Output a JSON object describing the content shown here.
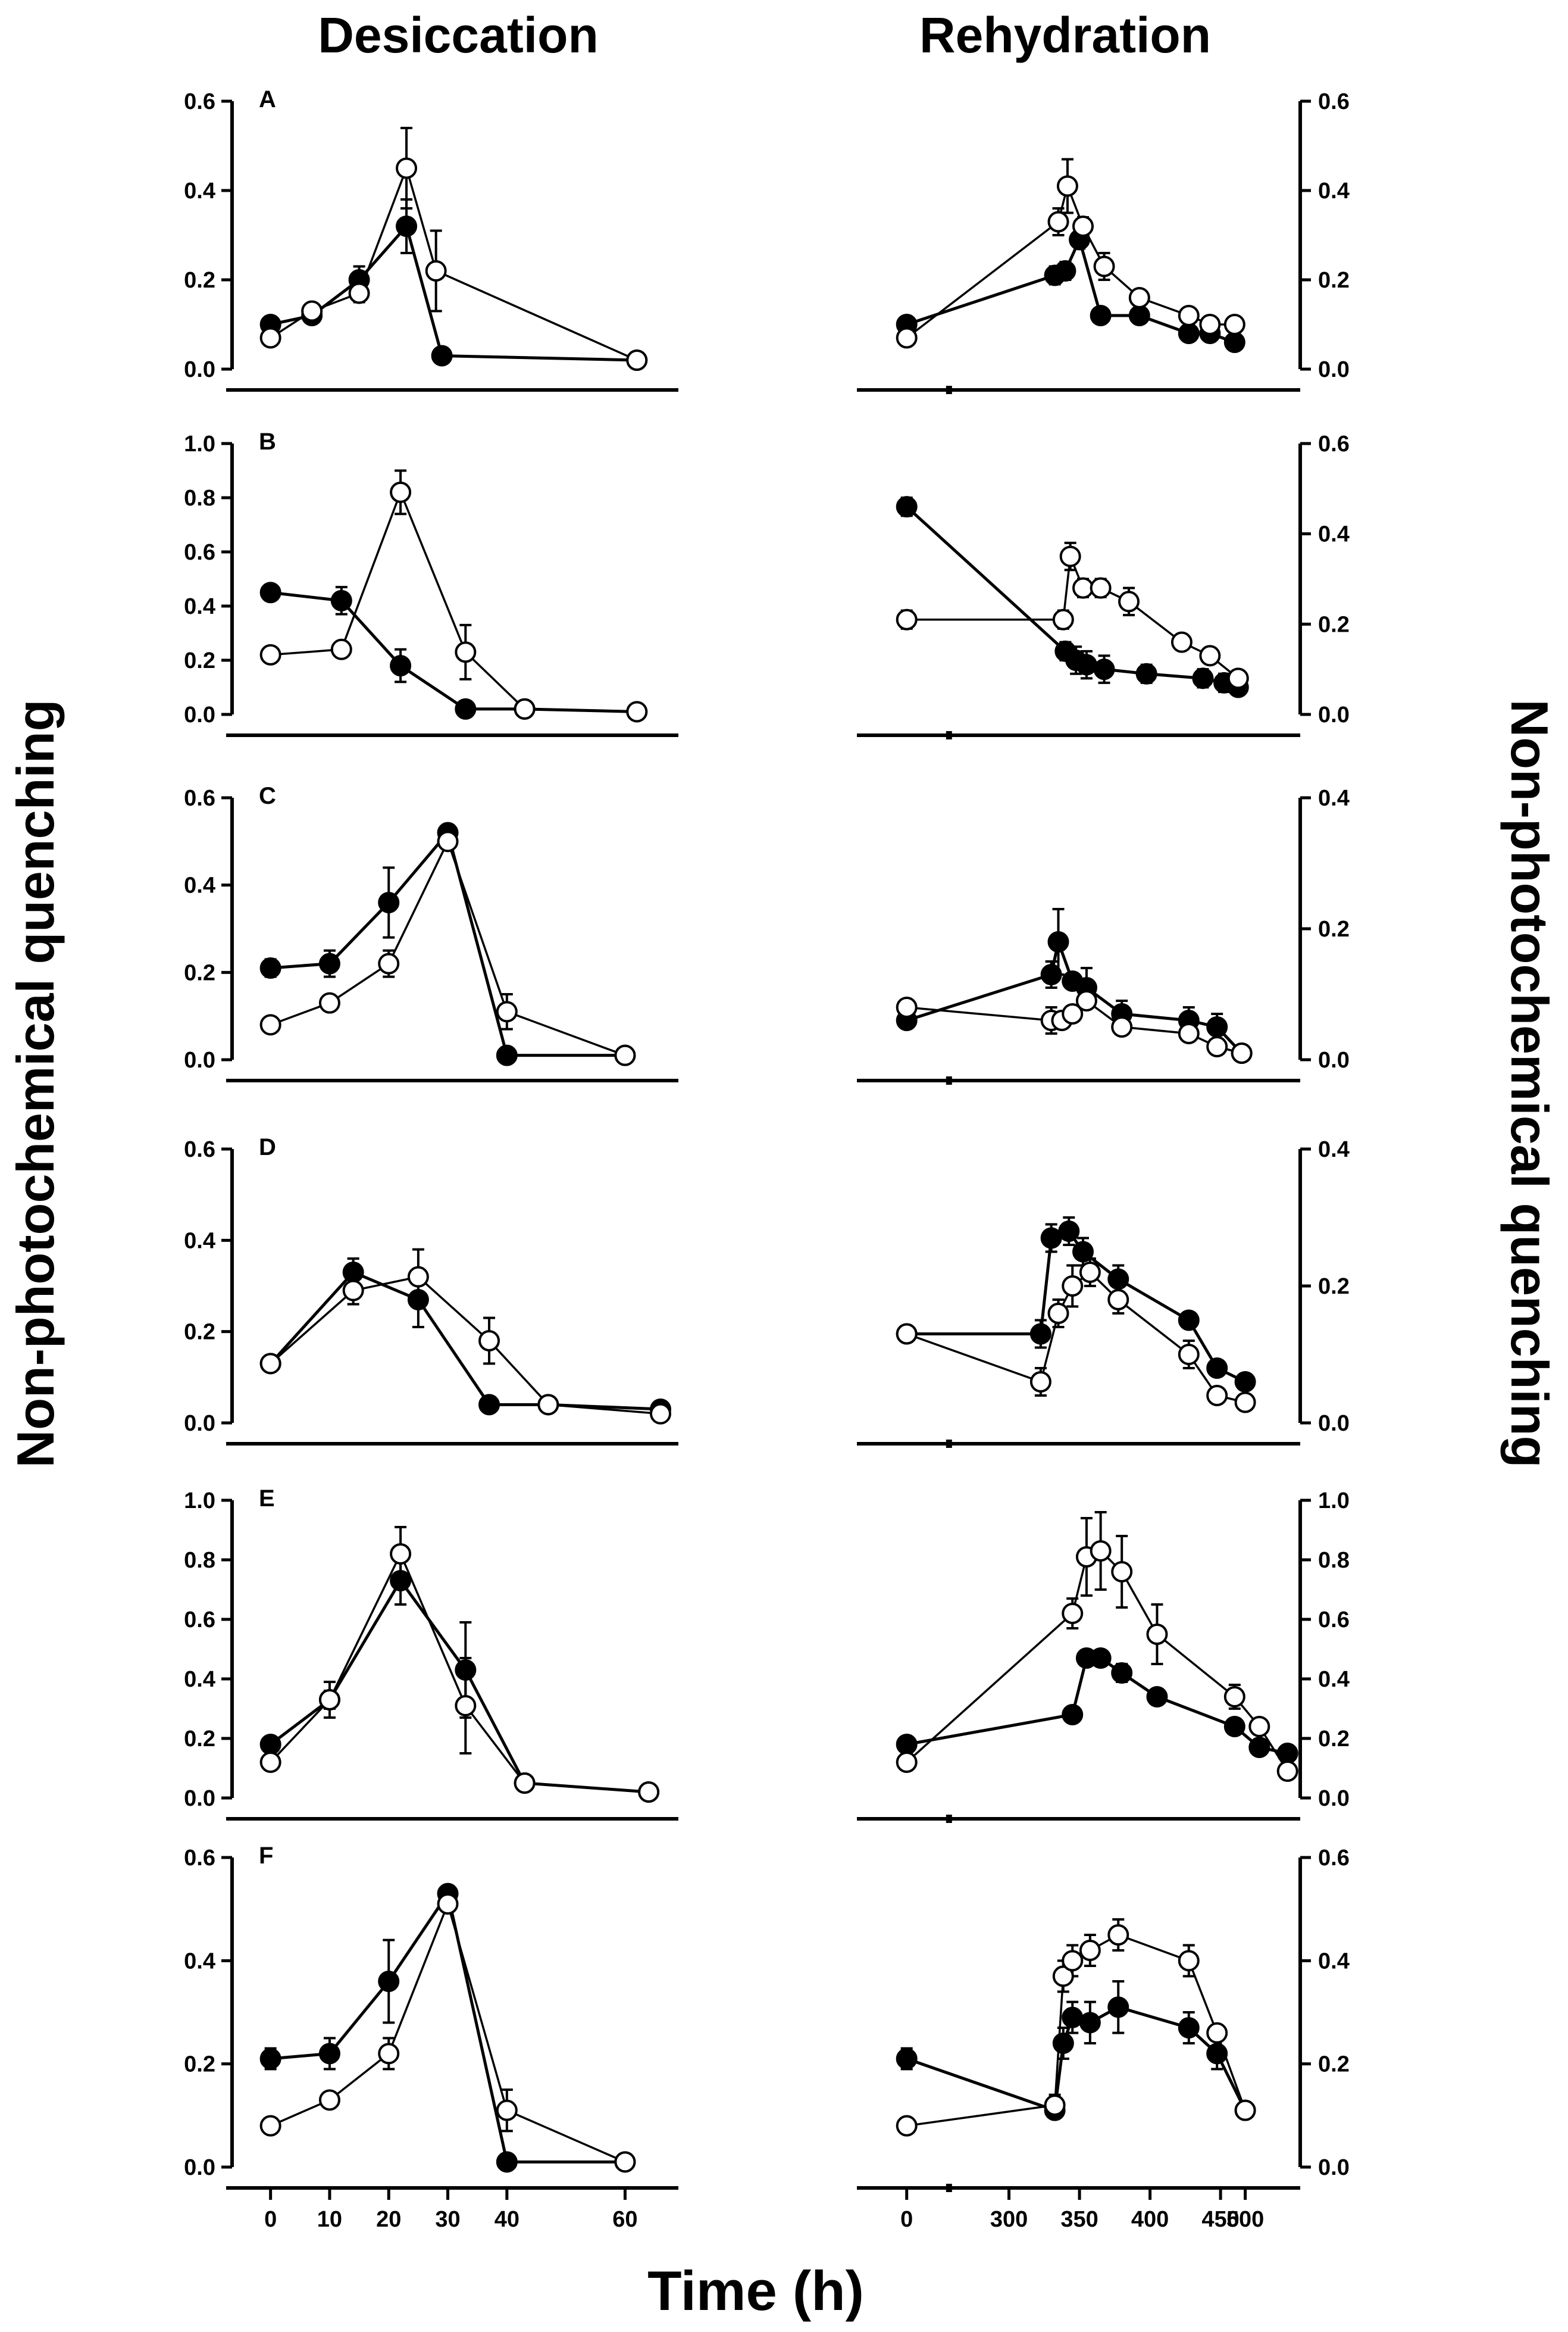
{
  "figure": {
    "left_title": "Desiccation",
    "right_title": "Rehydration",
    "y_label": "Non-photochemical quenching",
    "x_label": "Time (h)"
  },
  "chart_data": [
    {
      "panel": "A",
      "side": "desiccation",
      "type": "scatter",
      "ylim": [
        0,
        0.6
      ],
      "yticks": [
        0.0,
        0.2,
        0.4,
        0.6
      ],
      "xlim": [
        -5,
        66
      ],
      "xticks": [
        0,
        10,
        20,
        30,
        40,
        60
      ],
      "series": [
        {
          "name": "filled",
          "x": [
            0,
            7,
            15,
            23,
            29,
            62
          ],
          "y": [
            0.1,
            0.12,
            0.2,
            0.32,
            0.03,
            0.02
          ],
          "err": [
            0,
            0,
            0.03,
            0.06,
            0,
            0
          ]
        },
        {
          "name": "open",
          "x": [
            0,
            7,
            15,
            23,
            28,
            62
          ],
          "y": [
            0.07,
            0.13,
            0.17,
            0.45,
            0.22,
            0.02
          ],
          "err": [
            0,
            0,
            0.02,
            0.09,
            0.09,
            0
          ]
        }
      ]
    },
    {
      "panel": "A",
      "side": "rehydration",
      "type": "scatter",
      "ylim": [
        0,
        0.6
      ],
      "yticks": [
        0.0,
        0.2,
        0.4,
        0.6
      ],
      "xlim": [
        -20,
        520
      ],
      "series": [
        {
          "name": "filled",
          "x": [
            0,
            210,
            225,
            245,
            275,
            330,
            400,
            430,
            465
          ],
          "y": [
            0.1,
            0.21,
            0.22,
            0.29,
            0.12,
            0.12,
            0.08,
            0.08,
            0.06
          ],
          "err": [
            0,
            0.02,
            0.02,
            0.02,
            0,
            0,
            0,
            0,
            0
          ]
        },
        {
          "name": "open",
          "x": [
            0,
            215,
            228,
            250,
            280,
            330,
            400,
            430,
            465
          ],
          "y": [
            0.07,
            0.33,
            0.41,
            0.32,
            0.23,
            0.16,
            0.12,
            0.1,
            0.1
          ],
          "err": [
            0,
            0.03,
            0.06,
            0.02,
            0.03,
            0,
            0,
            0,
            0
          ]
        }
      ]
    },
    {
      "panel": "B",
      "side": "desiccation",
      "type": "scatter",
      "ylim": [
        0,
        1.0
      ],
      "yticks": [
        0.0,
        0.2,
        0.4,
        0.6,
        0.8,
        1.0
      ],
      "xlim": [
        -5,
        66
      ],
      "series": [
        {
          "name": "filled",
          "x": [
            0,
            12,
            22,
            33,
            43,
            62
          ],
          "y": [
            0.45,
            0.42,
            0.18,
            0.02,
            0.02,
            0.01
          ],
          "err": [
            0,
            0.05,
            0.06,
            0,
            0,
            0
          ]
        },
        {
          "name": "open",
          "x": [
            0,
            12,
            22,
            33,
            43,
            62
          ],
          "y": [
            0.22,
            0.24,
            0.82,
            0.23,
            0.02,
            0.01
          ],
          "err": [
            0,
            0,
            0.08,
            0.1,
            0,
            0
          ]
        }
      ]
    },
    {
      "panel": "B",
      "side": "rehydration",
      "type": "scatter",
      "ylim": [
        0,
        0.6
      ],
      "yticks": [
        0.0,
        0.2,
        0.4,
        0.6
      ],
      "xlim": [
        -20,
        520
      ],
      "series": [
        {
          "name": "filled",
          "x": [
            0,
            225,
            240,
            255,
            280,
            340,
            420,
            450,
            470
          ],
          "y": [
            0.46,
            0.14,
            0.12,
            0.11,
            0.1,
            0.09,
            0.08,
            0.07,
            0.06
          ],
          "err": [
            0.02,
            0.02,
            0.03,
            0.03,
            0.03,
            0.02,
            0.02,
            0.02,
            0
          ]
        },
        {
          "name": "open",
          "x": [
            0,
            222,
            232,
            250,
            275,
            315,
            390,
            430,
            470
          ],
          "y": [
            0.21,
            0.21,
            0.35,
            0.28,
            0.28,
            0.25,
            0.16,
            0.13,
            0.08
          ],
          "err": [
            0.02,
            0.02,
            0.03,
            0.02,
            0.02,
            0.03,
            0,
            0,
            0
          ]
        }
      ]
    },
    {
      "panel": "C",
      "side": "desiccation",
      "type": "scatter",
      "ylim": [
        0,
        0.6
      ],
      "yticks": [
        0.0,
        0.2,
        0.4,
        0.6
      ],
      "xlim": [
        -5,
        66
      ],
      "series": [
        {
          "name": "filled",
          "x": [
            0,
            10,
            20,
            30,
            40,
            60
          ],
          "y": [
            0.21,
            0.22,
            0.36,
            0.52,
            0.01,
            0.01
          ],
          "err": [
            0.02,
            0.03,
            0.08,
            0,
            0,
            0
          ]
        },
        {
          "name": "open",
          "x": [
            0,
            10,
            20,
            30,
            40,
            60
          ],
          "y": [
            0.08,
            0.13,
            0.22,
            0.5,
            0.11,
            0.01
          ],
          "err": [
            0,
            0,
            0.03,
            0,
            0.04,
            0
          ]
        }
      ]
    },
    {
      "panel": "C",
      "side": "rehydration",
      "type": "scatter",
      "ylim": [
        0,
        0.4
      ],
      "yticks": [
        0.0,
        0.2,
        0.4
      ],
      "xlim": [
        -20,
        520
      ],
      "series": [
        {
          "name": "filled",
          "x": [
            0,
            205,
            215,
            235,
            255,
            305,
            400,
            440,
            475
          ],
          "y": [
            0.06,
            0.13,
            0.18,
            0.12,
            0.11,
            0.07,
            0.06,
            0.05,
            0.01
          ],
          "err": [
            0,
            0.02,
            0.05,
            0,
            0.03,
            0.02,
            0.02,
            0.02,
            0
          ]
        },
        {
          "name": "open",
          "x": [
            0,
            205,
            220,
            235,
            255,
            305,
            400,
            440,
            475
          ],
          "y": [
            0.08,
            0.06,
            0.06,
            0.07,
            0.09,
            0.05,
            0.04,
            0.02,
            0.01
          ],
          "err": [
            0,
            0.02,
            0,
            0,
            0,
            0,
            0,
            0,
            0
          ]
        }
      ]
    },
    {
      "panel": "D",
      "side": "desiccation",
      "type": "scatter",
      "ylim": [
        0,
        0.6
      ],
      "yticks": [
        0.0,
        0.2,
        0.4,
        0.6
      ],
      "xlim": [
        -5,
        66
      ],
      "series": [
        {
          "name": "filled",
          "x": [
            0,
            14,
            25,
            37,
            47,
            66
          ],
          "y": [
            0.13,
            0.33,
            0.27,
            0.04,
            0.04,
            0.03
          ],
          "err": [
            0,
            0.03,
            0.06,
            0,
            0,
            0
          ]
        },
        {
          "name": "open",
          "x": [
            0,
            14,
            25,
            37,
            47,
            66
          ],
          "y": [
            0.13,
            0.29,
            0.32,
            0.18,
            0.04,
            0.02
          ],
          "err": [
            0,
            0.03,
            0.06,
            0.05,
            0,
            0
          ]
        }
      ]
    },
    {
      "panel": "D",
      "side": "rehydration",
      "type": "scatter",
      "ylim": [
        0,
        0.4
      ],
      "yticks": [
        0.0,
        0.2,
        0.4
      ],
      "xlim": [
        -20,
        520
      ],
      "series": [
        {
          "name": "filled",
          "x": [
            0,
            190,
            205,
            230,
            250,
            300,
            400,
            440,
            480
          ],
          "y": [
            0.13,
            0.13,
            0.27,
            0.28,
            0.25,
            0.21,
            0.15,
            0.08,
            0.06
          ],
          "err": [
            0.01,
            0.02,
            0.02,
            0.02,
            0.02,
            0.02,
            0.01,
            0,
            0
          ]
        },
        {
          "name": "open",
          "x": [
            0,
            190,
            215,
            235,
            260,
            300,
            400,
            440,
            480
          ],
          "y": [
            0.13,
            0.06,
            0.16,
            0.2,
            0.22,
            0.18,
            0.1,
            0.04,
            0.03
          ],
          "err": [
            0,
            0.02,
            0.02,
            0.03,
            0.02,
            0.02,
            0.02,
            0.01,
            0
          ]
        }
      ]
    },
    {
      "panel": "E",
      "side": "desiccation",
      "type": "scatter",
      "ylim": [
        0,
        1.0
      ],
      "yticks": [
        0.0,
        0.2,
        0.4,
        0.6,
        0.8,
        1.0
      ],
      "xlim": [
        -5,
        66
      ],
      "series": [
        {
          "name": "filled",
          "x": [
            0,
            10,
            22,
            33,
            43,
            64
          ],
          "y": [
            0.18,
            0.33,
            0.73,
            0.43,
            0.05,
            0.02
          ],
          "err": [
            0,
            0.03,
            0.08,
            0.16,
            0,
            0
          ]
        },
        {
          "name": "open",
          "x": [
            0,
            10,
            22,
            33,
            43,
            64
          ],
          "y": [
            0.12,
            0.33,
            0.82,
            0.31,
            0.05,
            0.02
          ],
          "err": [
            0,
            0.06,
            0.09,
            0.16,
            0,
            0
          ]
        }
      ]
    },
    {
      "panel": "E",
      "side": "rehydration",
      "type": "scatter",
      "ylim": [
        0,
        1.0
      ],
      "yticks": [
        0.0,
        0.2,
        0.4,
        0.6,
        0.8,
        1.0
      ],
      "xlim": [
        -20,
        520
      ],
      "series": [
        {
          "name": "filled",
          "x": [
            0,
            235,
            255,
            275,
            305,
            355,
            465,
            500,
            540
          ],
          "y": [
            0.18,
            0.28,
            0.47,
            0.47,
            0.42,
            0.34,
            0.24,
            0.17,
            0.15
          ],
          "err": [
            0,
            0,
            0.02,
            0.02,
            0.03,
            0.02,
            0,
            0,
            0
          ]
        },
        {
          "name": "open",
          "x": [
            0,
            235,
            255,
            275,
            305,
            355,
            465,
            500,
            540
          ],
          "y": [
            0.12,
            0.62,
            0.81,
            0.83,
            0.76,
            0.55,
            0.34,
            0.24,
            0.09
          ],
          "err": [
            0,
            0.05,
            0.13,
            0.13,
            0.12,
            0.1,
            0.04,
            0,
            0
          ]
        }
      ]
    },
    {
      "panel": "F",
      "side": "desiccation",
      "type": "scatter",
      "ylim": [
        0,
        0.6
      ],
      "yticks": [
        0.0,
        0.2,
        0.4,
        0.6
      ],
      "xlim": [
        -5,
        66
      ],
      "series": [
        {
          "name": "filled",
          "x": [
            0,
            10,
            20,
            30,
            40,
            60
          ],
          "y": [
            0.21,
            0.22,
            0.36,
            0.53,
            0.01,
            0.01
          ],
          "err": [
            0.02,
            0.03,
            0.08,
            0,
            0,
            0
          ]
        },
        {
          "name": "open",
          "x": [
            0,
            10,
            20,
            30,
            40,
            60
          ],
          "y": [
            0.08,
            0.13,
            0.22,
            0.51,
            0.11,
            0.01
          ],
          "err": [
            0,
            0,
            0.03,
            0,
            0.04,
            0
          ]
        }
      ]
    },
    {
      "panel": "F",
      "side": "rehydration",
      "type": "scatter",
      "ylim": [
        0,
        0.6
      ],
      "yticks": [
        0.0,
        0.2,
        0.4,
        0.6
      ],
      "xlim": [
        -20,
        520
      ],
      "series": [
        {
          "name": "filled",
          "x": [
            0,
            210,
            222,
            235,
            260,
            300,
            400,
            440,
            480
          ],
          "y": [
            0.21,
            0.11,
            0.24,
            0.29,
            0.28,
            0.31,
            0.27,
            0.22,
            0.11
          ],
          "err": [
            0.02,
            0,
            0.03,
            0.03,
            0.04,
            0.05,
            0.03,
            0.03,
            0
          ]
        },
        {
          "name": "open",
          "x": [
            0,
            210,
            222,
            235,
            260,
            300,
            400,
            440,
            480
          ],
          "y": [
            0.08,
            0.12,
            0.37,
            0.4,
            0.42,
            0.45,
            0.4,
            0.26,
            0.11
          ],
          "err": [
            0,
            0.02,
            0.03,
            0.03,
            0.03,
            0.03,
            0.03,
            0,
            0
          ]
        }
      ]
    }
  ],
  "rehydration_xticks": [
    "0",
    "300",
    "350",
    "400",
    "450",
    "500"
  ]
}
